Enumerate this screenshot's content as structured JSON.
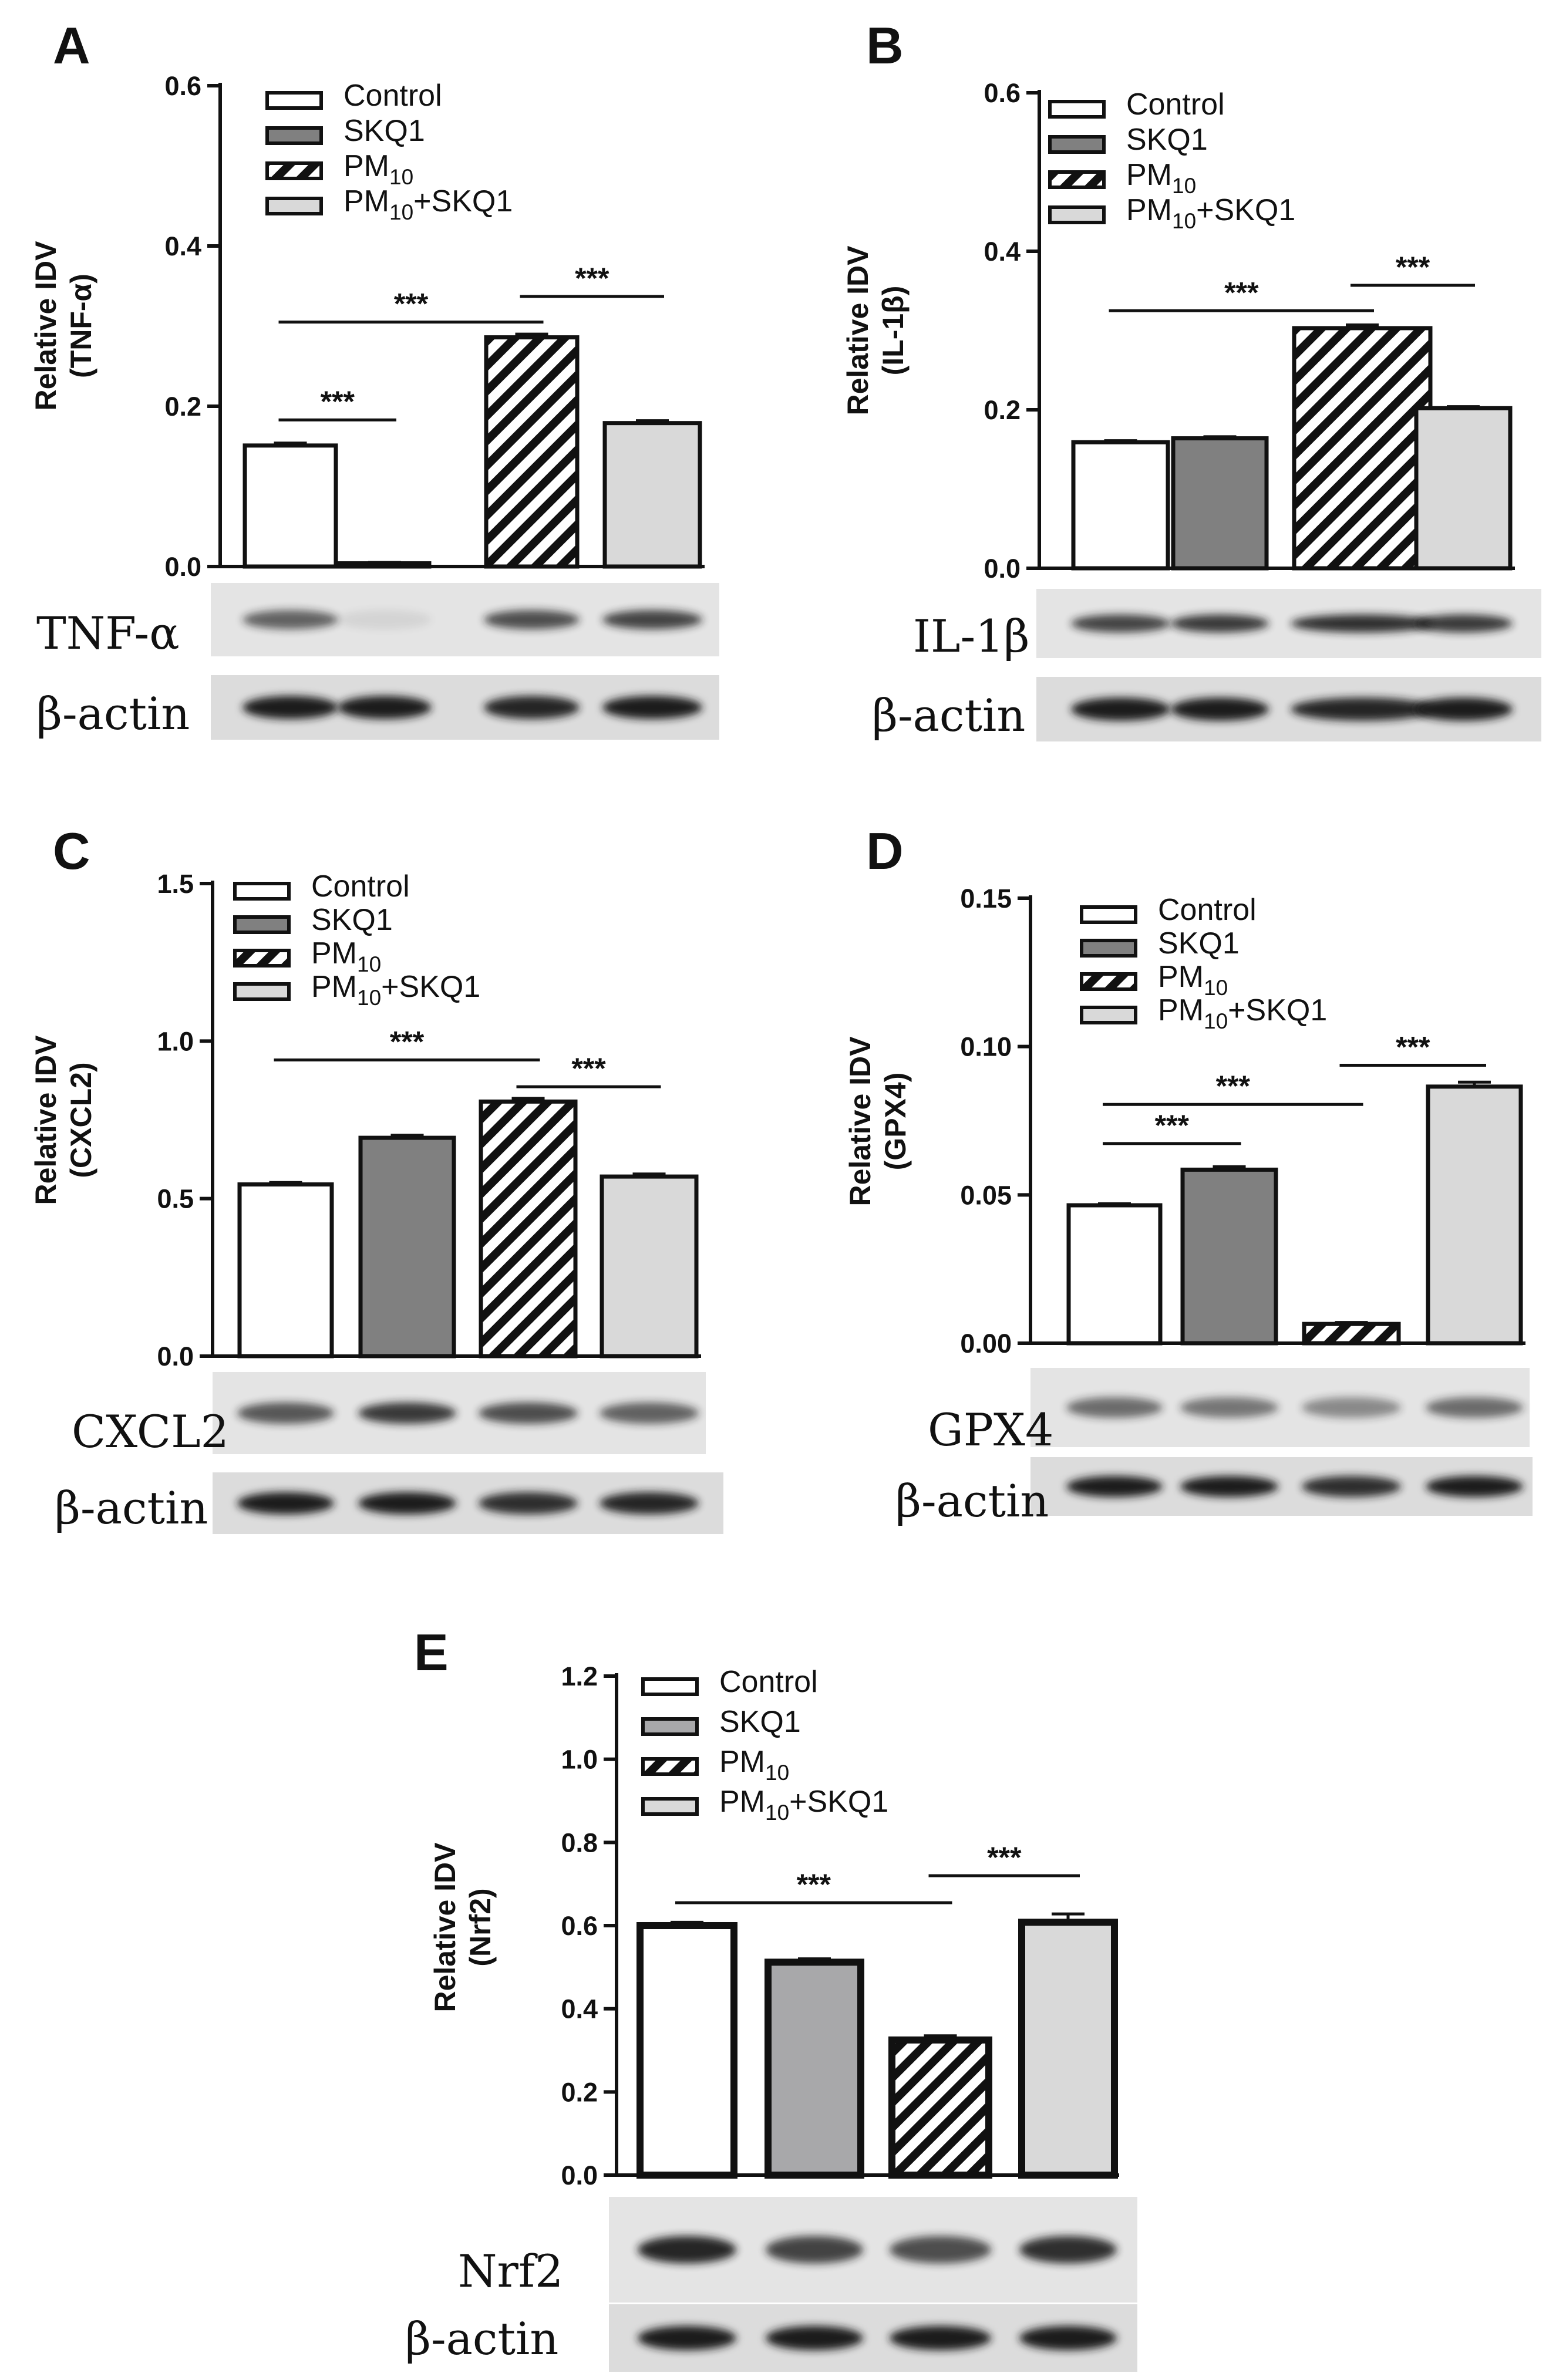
{
  "chart_data": [
    {
      "panel": "A",
      "type": "bar",
      "ylabel": [
        "Relative IDV",
        "(TNF-α)"
      ],
      "yticks": [
        "0.0",
        "0.2",
        "0.4",
        "0.6"
      ],
      "ylim": [
        0,
        0.6
      ],
      "series": [
        {
          "name": "Control",
          "value": 0.151,
          "error": 0.003
        },
        {
          "name": "SKQ1",
          "value": 0.004,
          "error": 0.001
        },
        {
          "name": "PM",
          "sub": "10",
          "value": 0.286,
          "error": 0.004
        },
        {
          "name": "PM",
          "sub": "10",
          "suffix": "+SKQ1",
          "value": 0.179,
          "error": 0.003
        }
      ],
      "significance": [
        {
          "from": 0,
          "to": 1,
          "y": 0.183,
          "label": "***"
        },
        {
          "from": 0,
          "to": 2,
          "y": 0.305,
          "label": "***"
        },
        {
          "from": 2,
          "to": 3,
          "y": 0.337,
          "label": "***"
        }
      ],
      "blots": [
        {
          "label": "TNF-α",
          "intensity": [
            0.65,
            0.08,
            0.75,
            0.8
          ]
        },
        {
          "label": "β-actin",
          "intensity": [
            1,
            1,
            0.95,
            1
          ]
        }
      ]
    },
    {
      "panel": "B",
      "type": "bar",
      "ylabel": [
        "Relative IDV",
        "(IL-1β)"
      ],
      "yticks": [
        "0.0",
        "0.2",
        "0.4",
        "0.6"
      ],
      "ylim": [
        0,
        0.6
      ],
      "series": [
        {
          "name": "Control",
          "value": 0.159,
          "error": 0.002
        },
        {
          "name": "SKQ1",
          "value": 0.164,
          "error": 0.002
        },
        {
          "name": "PM",
          "sub": "10",
          "value": 0.303,
          "error": 0.004
        },
        {
          "name": "PM",
          "sub": "10",
          "suffix": "+SKQ1",
          "value": 0.202,
          "error": 0.002
        }
      ],
      "significance": [
        {
          "from": 0,
          "to": 2,
          "y": 0.325,
          "label": "***"
        },
        {
          "from": 2,
          "to": 3,
          "y": 0.357,
          "label": "***"
        }
      ],
      "blots": [
        {
          "label": "IL-1β",
          "intensity": [
            0.8,
            0.85,
            0.9,
            0.85
          ]
        },
        {
          "label": "β-actin",
          "intensity": [
            1,
            1,
            0.95,
            1
          ]
        }
      ]
    },
    {
      "panel": "C",
      "type": "bar",
      "ylabel": [
        "Relative IDV",
        "(CXCL2)"
      ],
      "yticks": [
        "0.0",
        "0.5",
        "1.0",
        "1.5"
      ],
      "ylim": [
        0,
        1.5
      ],
      "series": [
        {
          "name": "Control",
          "value": 0.545,
          "error": 0.006
        },
        {
          "name": "SKQ1",
          "value": 0.693,
          "error": 0.008
        },
        {
          "name": "PM",
          "sub": "10",
          "value": 0.808,
          "error": 0.01
        },
        {
          "name": "PM",
          "sub": "10",
          "suffix": "+SKQ1",
          "value": 0.57,
          "error": 0.008
        }
      ],
      "significance": [
        {
          "from": 0,
          "to": 2,
          "y": 0.94,
          "label": "***"
        },
        {
          "from": 2,
          "to": 3,
          "y": 0.855,
          "label": "***"
        }
      ],
      "blots": [
        {
          "label": "CXCL2",
          "intensity": [
            0.7,
            0.85,
            0.75,
            0.65
          ]
        },
        {
          "label": "β-actin",
          "intensity": [
            1,
            1,
            0.9,
            0.95
          ]
        }
      ]
    },
    {
      "panel": "D",
      "type": "bar",
      "ylabel": [
        "Relative IDV",
        "(GPX4)"
      ],
      "yticks": [
        "0.00",
        "0.05",
        "0.10",
        "0.15"
      ],
      "ylim": [
        0,
        0.15
      ],
      "series": [
        {
          "name": "Control",
          "value": 0.0465,
          "error": 0.0005
        },
        {
          "name": "SKQ1",
          "value": 0.0585,
          "error": 0.001
        },
        {
          "name": "PM",
          "sub": "10",
          "value": 0.0065,
          "error": 0.0005
        },
        {
          "name": "PM",
          "sub": "10",
          "suffix": "+SKQ1",
          "value": 0.0865,
          "error": 0.0015
        }
      ],
      "significance": [
        {
          "from": 0,
          "to": 1,
          "y": 0.0673,
          "label": "***"
        },
        {
          "from": 0,
          "to": 2,
          "y": 0.0805,
          "label": "***"
        },
        {
          "from": 2,
          "to": 3,
          "y": 0.0937,
          "label": "***"
        }
      ],
      "blots": [
        {
          "label": "GPX4",
          "intensity": [
            0.6,
            0.55,
            0.45,
            0.6
          ]
        },
        {
          "label": "β-actin",
          "intensity": [
            1,
            1,
            0.9,
            1
          ]
        }
      ]
    },
    {
      "panel": "E",
      "type": "bar",
      "ylabel": [
        "Relative IDV",
        "(Nrf2)"
      ],
      "yticks": [
        "0.0",
        "0.2",
        "0.4",
        "0.6",
        "0.8",
        "1.0",
        "1.2"
      ],
      "ylim": [
        0,
        1.2
      ],
      "series": [
        {
          "name": "Control",
          "value": 0.6,
          "error": 0.008
        },
        {
          "name": "SKQ1",
          "value": 0.512,
          "error": 0.008
        },
        {
          "name": "PM",
          "sub": "10",
          "value": 0.325,
          "error": 0.01
        },
        {
          "name": "PM",
          "sub": "10",
          "suffix": "+SKQ1",
          "value": 0.608,
          "error": 0.02
        }
      ],
      "significance": [
        {
          "from": 0,
          "to": 2,
          "y": 0.655,
          "label": "***"
        },
        {
          "from": 2,
          "to": 3,
          "y": 0.72,
          "label": "***"
        }
      ],
      "blots": [
        {
          "label": "Nrf2",
          "intensity": [
            0.95,
            0.8,
            0.75,
            0.9
          ]
        },
        {
          "label": "β-actin",
          "intensity": [
            1,
            1,
            1,
            1
          ]
        }
      ]
    }
  ],
  "colors": {
    "control": "#ffffff",
    "skq1": "#808080",
    "skq1_panel_e": "#a8a8aa",
    "pm10": "hatched",
    "pm10_skq1": "#d9d9d9",
    "axis": "#111111",
    "band": "#1a1a1a"
  }
}
